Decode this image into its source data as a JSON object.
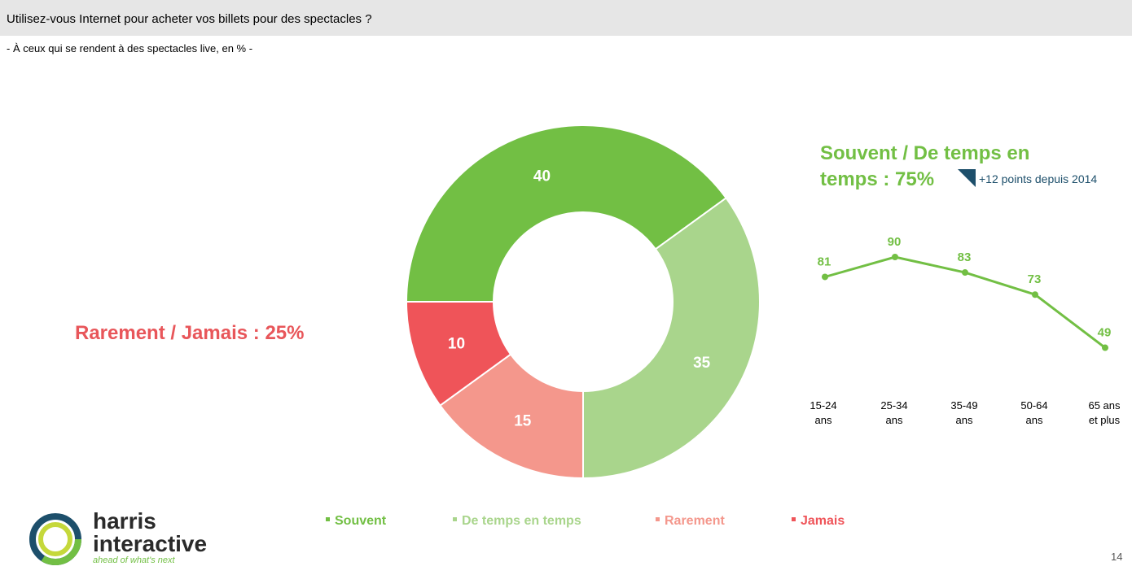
{
  "header": {
    "title": "Utilisez-vous Internet pour acheter vos billets pour des spectacles ?",
    "subtitle": "- À ceux qui se rendent à des spectacles live, en % -"
  },
  "summary": {
    "rare_label": "Rarement / Jamais : 25%",
    "frequent_label": "Souvent / De temps en temps : 75%",
    "trend_label": "+12 points depuis 2014"
  },
  "colors": {
    "souvent": "#72bf44",
    "de_temps": "#a9d58c",
    "rarement": "#f4978c",
    "jamais": "#ef5459",
    "trend_arrow": "#1d4f6b"
  },
  "chart_data": [
    {
      "type": "pie",
      "categories": [
        "Souvent",
        "De temps en temps",
        "Rarement",
        "Jamais"
      ],
      "values": [
        40,
        35,
        15,
        10
      ],
      "donut": true
    },
    {
      "type": "line",
      "categories": [
        "15-24 ans",
        "25-34 ans",
        "35-49 ans",
        "50-64 ans",
        "65 ans et plus"
      ],
      "values": [
        81,
        90,
        83,
        73,
        49
      ]
    }
  ],
  "legend": {
    "souvent": "Souvent",
    "de_temps": "De temps en temps",
    "rarement": "Rarement",
    "jamais": "Jamais"
  },
  "ages": {
    "a1": [
      "15-24",
      "ans"
    ],
    "a2": [
      "25-34",
      "ans"
    ],
    "a3": [
      "35-49",
      "ans"
    ],
    "a4": [
      "50-64",
      "ans"
    ],
    "a5": [
      "65 ans",
      "et plus"
    ]
  },
  "logo": {
    "line1": "harris",
    "line2": "interactive",
    "tagline": "ahead of what's next"
  },
  "page_number": "14"
}
